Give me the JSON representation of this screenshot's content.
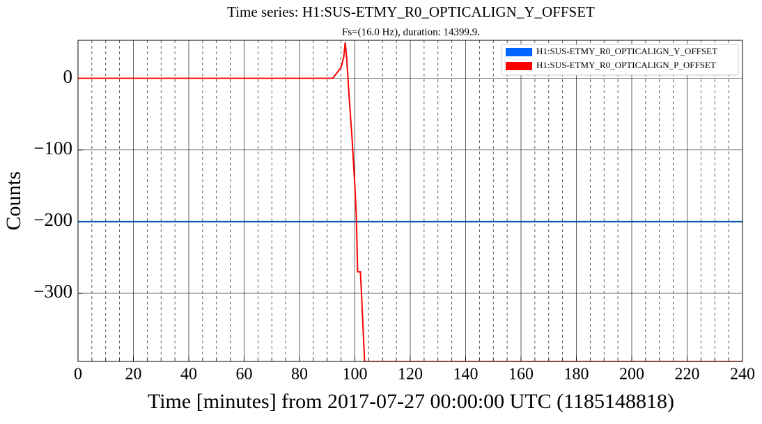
{
  "chart_data": {
    "type": "line",
    "title": "Time series:  H1:SUS-ETMY_R0_OPTICALIGN_Y_OFFSET",
    "subtitle": "Fs=(16.0 Hz), duration:  14399.9.",
    "x_label": "Time [minutes] from 2017-07-27 00:00:00 UTC (1185148818)",
    "y_label": "Counts",
    "xlim": [
      0,
      240
    ],
    "xticks": [
      0,
      20,
      40,
      60,
      80,
      100,
      120,
      140,
      160,
      180,
      200,
      220,
      240
    ],
    "xminorticks": [
      5,
      10,
      15,
      25,
      30,
      35,
      45,
      50,
      55,
      65,
      70,
      75,
      85,
      90,
      95,
      105,
      110,
      115,
      125,
      130,
      135,
      145,
      150,
      155,
      165,
      170,
      175,
      185,
      190,
      195,
      205,
      210,
      215,
      225,
      230,
      235
    ],
    "ylim": [
      -395,
      53
    ],
    "yticks": [
      {
        "value": -300,
        "label": "−300"
      },
      {
        "value": -200,
        "label": "−200"
      },
      {
        "value": -100,
        "label": "−100"
      },
      0
    ],
    "grid": true,
    "legend": "upper right",
    "series": [
      {
        "name": "H1:SUS-ETMY_R0_OPTICALIGN_Y_OFFSET",
        "color": "#0050b0",
        "legend_color": "#0066ff",
        "x": [
          0,
          240
        ],
        "values": [
          -200,
          -200
        ]
      },
      {
        "name": "H1:SUS-ETMY_R0_OPTICALIGN_P_OFFSET",
        "color": "#ff0000",
        "legend_color": "#ff0000",
        "x": [
          0,
          92,
          93,
          94,
          95,
          96,
          96.5,
          97,
          98,
          99,
          100,
          100.5,
          101,
          102,
          102.5,
          103.5,
          240
        ],
        "values": [
          0,
          0,
          5,
          10,
          15,
          30,
          50,
          30,
          -30,
          -85,
          -150,
          -190,
          -270,
          -270,
          -310,
          -395,
          -395
        ]
      }
    ]
  }
}
